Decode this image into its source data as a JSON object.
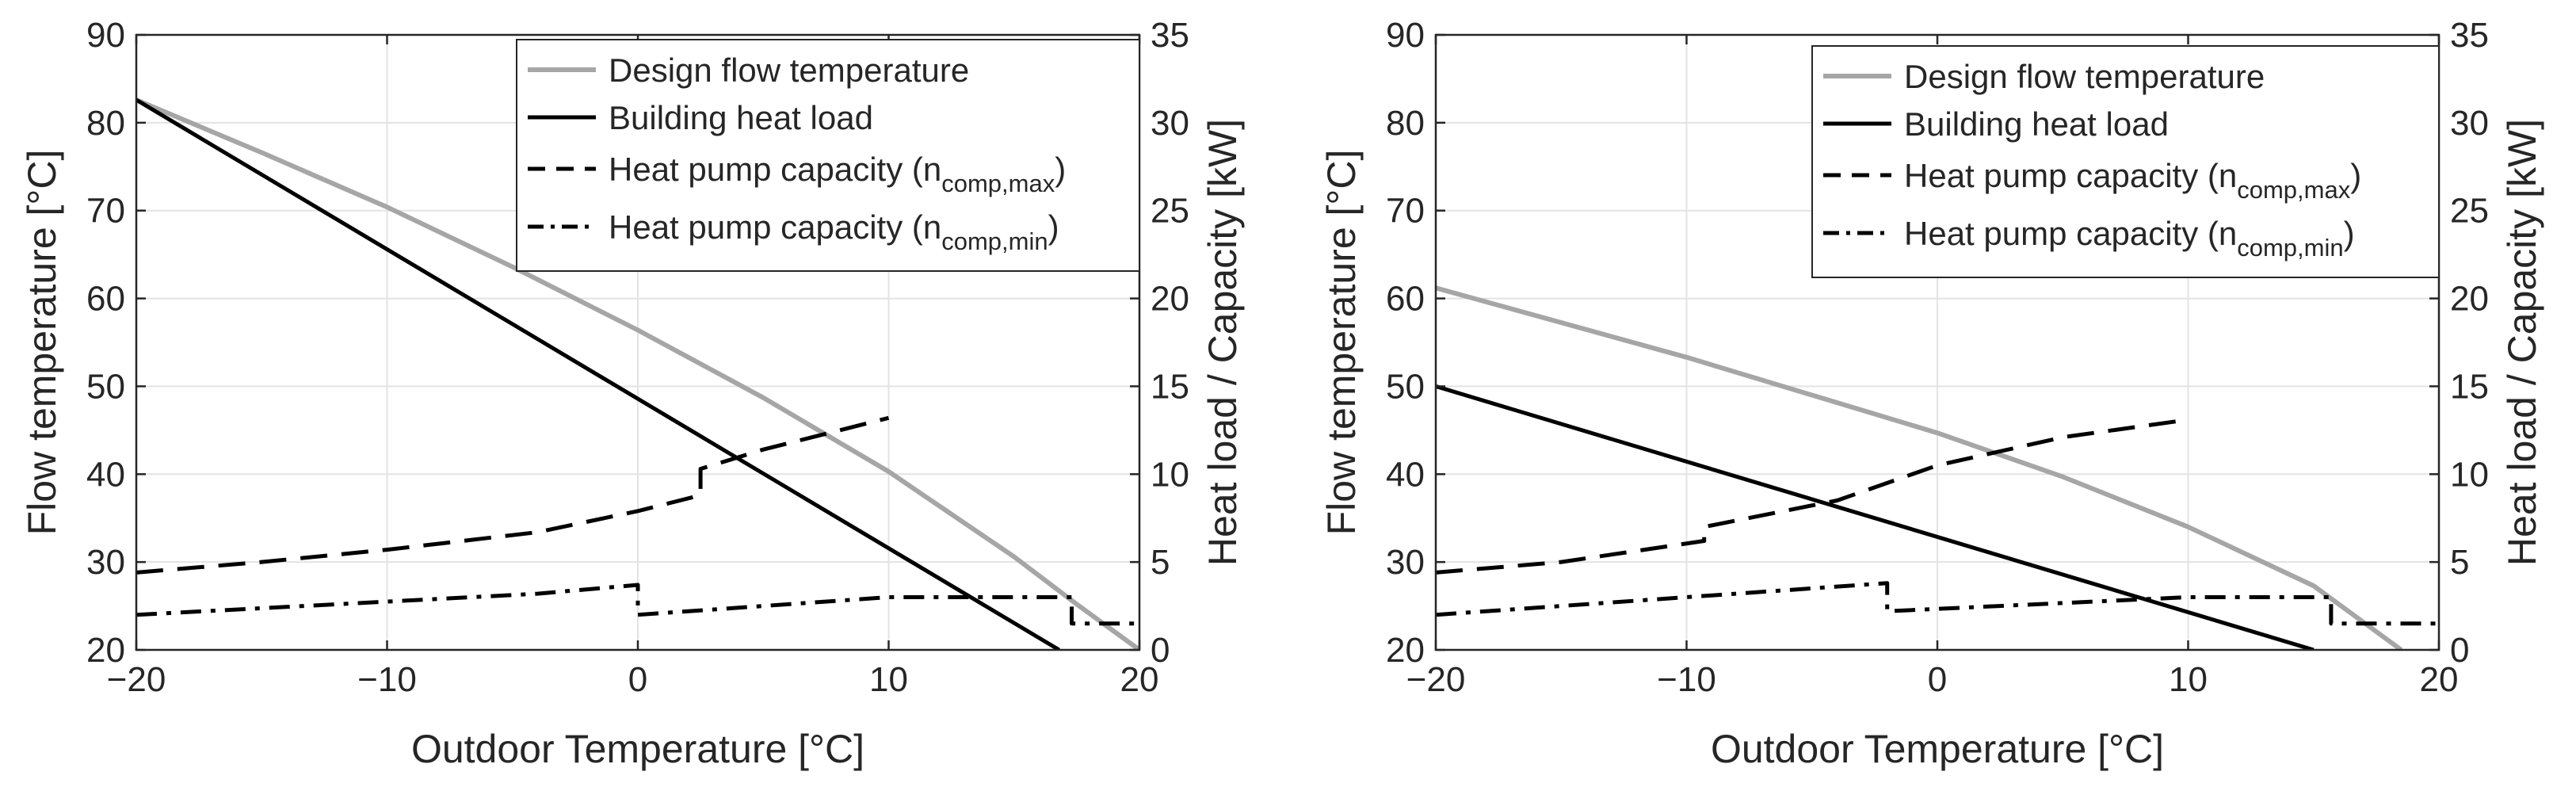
{
  "chart_data": [
    {
      "type": "line",
      "xlabel": "Outdoor Temperature [°C]",
      "ylabel_left": "Flow temperature [°C]",
      "ylabel_right": "Heat load / Capacity [kW]",
      "xlim": [
        -20,
        20
      ],
      "ylim_left": [
        20,
        90
      ],
      "ylim_right": [
        0,
        35
      ],
      "xticks": [
        -20,
        -10,
        0,
        10,
        20
      ],
      "xtick_labels": [
        "−20",
        "−10",
        "0",
        "10",
        "20"
      ],
      "yticks_left": [
        20,
        30,
        40,
        50,
        60,
        70,
        80,
        90
      ],
      "yticks_right": [
        0,
        5,
        10,
        15,
        20,
        25,
        30,
        35
      ],
      "grid": true,
      "legend_position": "top-right",
      "series": [
        {
          "name": "Design flow temperature",
          "axis": "left",
          "style": "solid",
          "color": "#a6a6a6",
          "x": [
            -20,
            -15,
            -10,
            -5,
            0,
            5,
            10,
            15,
            17.5,
            20
          ],
          "y": [
            82.6,
            76.6,
            70.4,
            63.6,
            56.4,
            48.7,
            40.3,
            30.6,
            25.2,
            20
          ]
        },
        {
          "name": "Building heat load",
          "axis": "right",
          "style": "solid",
          "color": "#000000",
          "x": [
            -20,
            16.8
          ],
          "y": [
            31.3,
            0
          ]
        },
        {
          "name": "Heat pump capacity (n",
          "sub": "comp,max",
          "suffix": ")",
          "axis": "right",
          "style": "dashed",
          "color": "#000000",
          "x": [
            -20,
            -15,
            -10,
            -4,
            0,
            2.5,
            2.5,
            5,
            10
          ],
          "y": [
            4.4,
            5.0,
            5.7,
            6.7,
            7.9,
            8.8,
            10.3,
            11.4,
            13.2
          ]
        },
        {
          "name": "Heat pump capacity (n",
          "sub": "comp,min",
          "suffix": ")",
          "axis": "right",
          "style": "dashdot",
          "color": "#000000",
          "x": [
            -20,
            -4,
            0,
            0,
            10,
            17.3,
            17.3,
            20
          ],
          "y": [
            2.0,
            3.2,
            3.7,
            2.0,
            3.0,
            3.0,
            1.5,
            1.5
          ]
        }
      ]
    },
    {
      "type": "line",
      "xlabel": "Outdoor Temperature [°C]",
      "ylabel_left": "Flow temperature [°C]",
      "ylabel_right": "Heat load / Capacity [kW]",
      "xlim": [
        -20,
        20
      ],
      "ylim_left": [
        20,
        90
      ],
      "ylim_right": [
        0,
        35
      ],
      "xticks": [
        -20,
        -10,
        0,
        10,
        20
      ],
      "xtick_labels": [
        "−20",
        "−10",
        "0",
        "10",
        "20"
      ],
      "yticks_left": [
        20,
        30,
        40,
        50,
        60,
        70,
        80,
        90
      ],
      "yticks_right": [
        0,
        5,
        10,
        15,
        20,
        25,
        30,
        35
      ],
      "grid": true,
      "legend_position": "top-right",
      "series": [
        {
          "name": "Design flow temperature",
          "axis": "left",
          "style": "solid",
          "color": "#a6a6a6",
          "x": [
            -20,
            -10,
            0,
            5,
            10,
            15,
            18.5
          ],
          "y": [
            61.2,
            53.3,
            44.7,
            39.7,
            34.0,
            27.3,
            20
          ]
        },
        {
          "name": "Building heat load",
          "axis": "right",
          "style": "solid",
          "color": "#000000",
          "x": [
            -20,
            15
          ],
          "y": [
            15,
            0
          ]
        },
        {
          "name": "Heat pump capacity (n",
          "sub": "comp,max",
          "suffix": ")",
          "axis": "right",
          "style": "dashed",
          "color": "#000000",
          "x": [
            -20,
            -15,
            -9.3,
            -9.3,
            -4,
            -2,
            0,
            5,
            10
          ],
          "y": [
            4.4,
            5.0,
            6.2,
            7.0,
            8.5,
            9.5,
            10.5,
            12.1,
            13.1
          ]
        },
        {
          "name": "Heat pump capacity (n",
          "sub": "comp,min",
          "suffix": ")",
          "axis": "right",
          "style": "dashdot",
          "color": "#000000",
          "x": [
            -20,
            -2,
            -2,
            10,
            15.7,
            15.7,
            20
          ],
          "y": [
            2.0,
            3.8,
            2.2,
            3.0,
            3.0,
            1.5,
            1.5
          ]
        }
      ]
    }
  ]
}
